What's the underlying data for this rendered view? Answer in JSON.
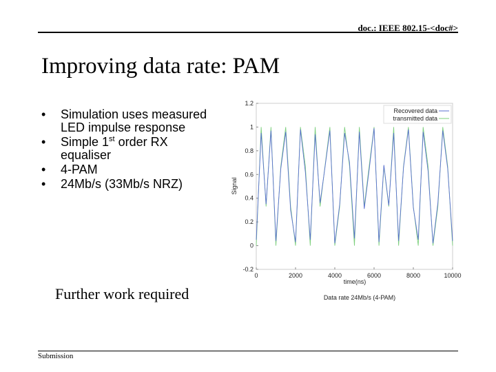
{
  "header": {
    "doc": "doc.: IEEE 802.15-<doc#>",
    "title": "Improving data rate: PAM"
  },
  "bullets": [
    {
      "text": "Simulation uses measured LED impulse response"
    },
    {
      "before": "Simple 1",
      "sup": "st",
      "after": " order RX equaliser"
    },
    {
      "text": "4-PAM"
    },
    {
      "text": "24Mb/s (33Mb/s NRZ)"
    }
  ],
  "note": "Further work required",
  "footer": "Submission",
  "chart_data": {
    "type": "line",
    "xlabel": "time(ns)",
    "ylabel": "Signal",
    "caption": "Data rate 24Mb/s (4-PAM)",
    "x": [
      0,
      250,
      500,
      750,
      1000,
      1250,
      1500,
      1750,
      2000,
      2250,
      2500,
      2750,
      3000,
      3250,
      3500,
      3750,
      4000,
      4250,
      4500,
      4750,
      5000,
      5250,
      5500,
      5750,
      6000,
      6250,
      6500,
      6750,
      7000,
      7250,
      7500,
      7750,
      8000,
      8250,
      8500,
      8750,
      9000,
      9250,
      9500,
      9750,
      10000
    ],
    "series": [
      {
        "name": "Recovered data",
        "color": "#5a6fd0",
        "values": [
          0.05,
          0.95,
          0.35,
          0.97,
          0.04,
          0.65,
          0.96,
          0.3,
          0.03,
          0.98,
          0.62,
          0.05,
          0.94,
          0.36,
          0.66,
          0.97,
          0.02,
          0.35,
          0.95,
          0.7,
          0.06,
          0.96,
          0.31,
          0.64,
          0.99,
          0.03,
          0.68,
          0.34,
          0.95,
          0.04,
          0.66,
          0.98,
          0.32,
          0.05,
          0.96,
          0.63,
          0.02,
          0.36,
          0.97,
          0.65,
          0.04
        ]
      },
      {
        "name": "transmitted data",
        "color": "#7ccf7c",
        "values": [
          0,
          1,
          0.33,
          1,
          0,
          0.67,
          1,
          0.33,
          0,
          1,
          0.67,
          0,
          1,
          0.33,
          0.67,
          1,
          0,
          0.33,
          1,
          0.67,
          0,
          1,
          0.33,
          0.67,
          1,
          0,
          0.67,
          0.33,
          1,
          0,
          0.67,
          1,
          0.33,
          0,
          1,
          0.67,
          0,
          0.33,
          1,
          0.67,
          0
        ]
      }
    ],
    "xlim": [
      0,
      10000
    ],
    "ylim": [
      -0.2,
      1.2
    ],
    "xticks": [
      0,
      2000,
      4000,
      6000,
      8000,
      10000
    ],
    "yticks": [
      -0.2,
      0,
      0.2,
      0.4,
      0.6,
      0.8,
      1,
      1.2
    ],
    "legend": "upper right"
  }
}
